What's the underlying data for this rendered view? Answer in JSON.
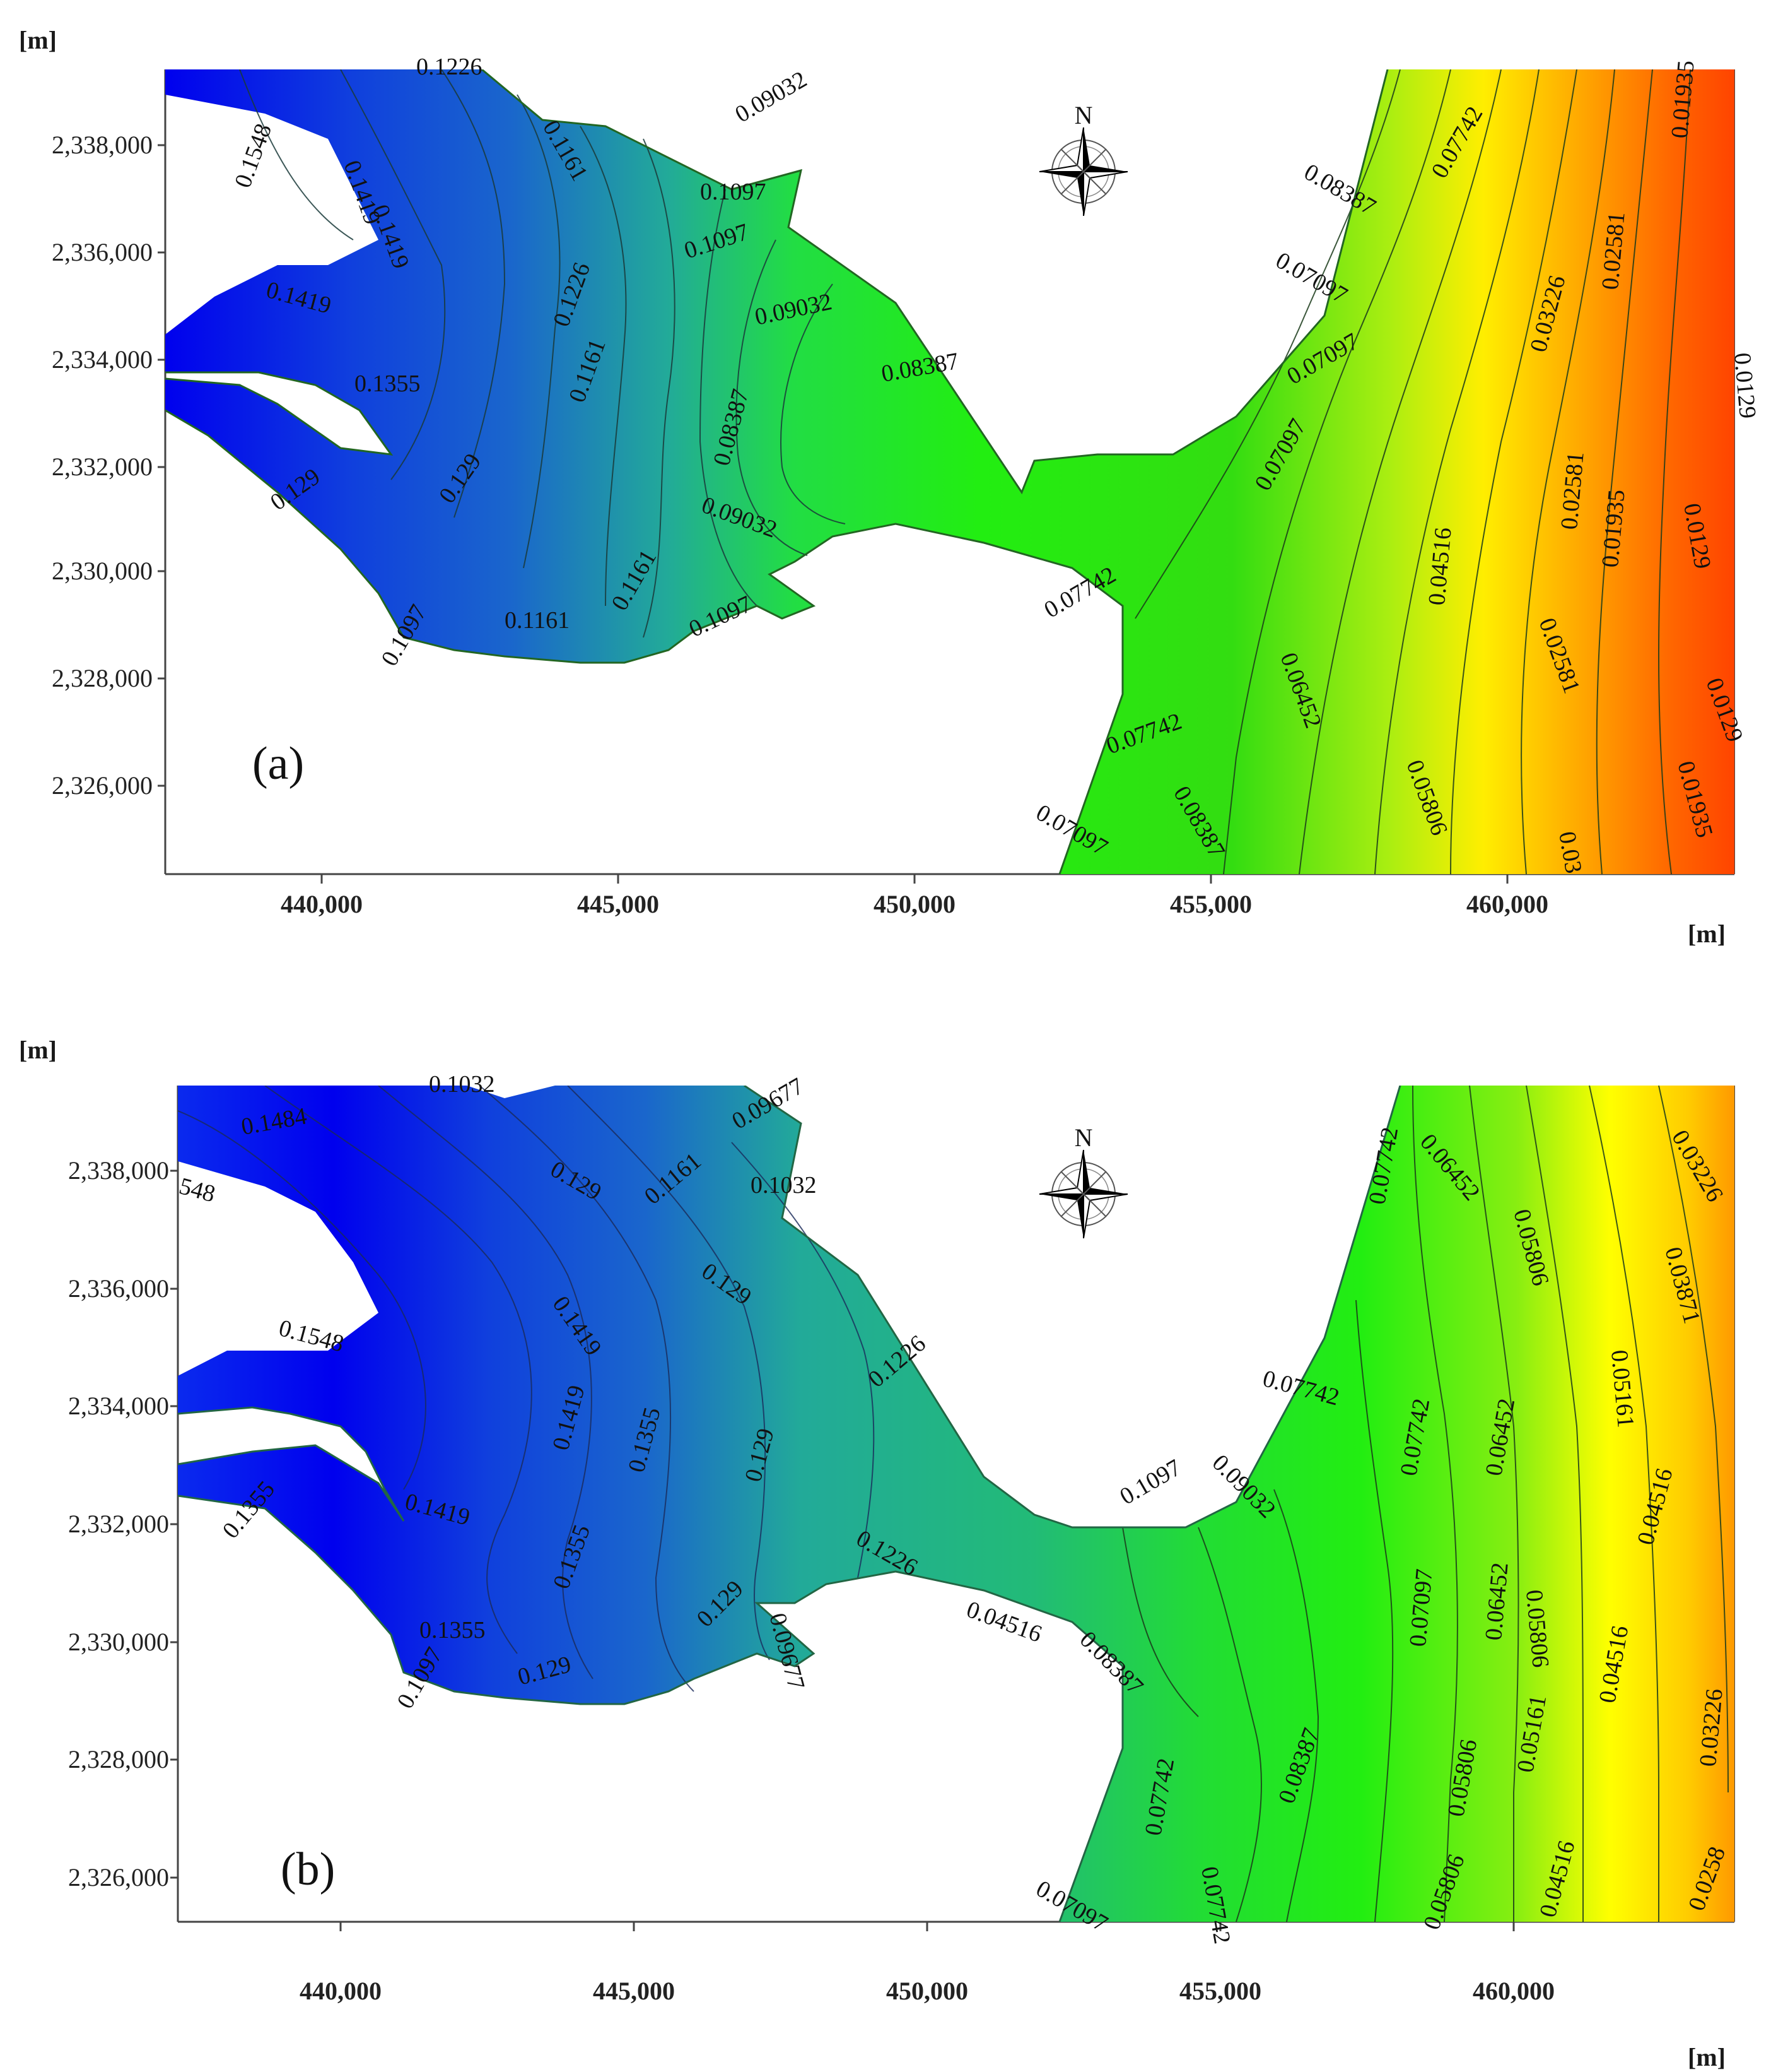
{
  "figure": {
    "panels": [
      {
        "id": "a",
        "label": "(a)",
        "y_unit": "[m]",
        "x_unit": "[m]",
        "y_ticks": [
          "2,326,000",
          "2,328,000",
          "2,330,000",
          "2,332,000",
          "2,334,000",
          "2,336,000",
          "2,338,000"
        ],
        "x_ticks": [
          "440,000",
          "445,000",
          "450,000",
          "455,000",
          "460,000"
        ],
        "contour_labels": [
          "0.1226",
          "0.1548",
          "0.1419",
          "0.1419",
          "0.1419",
          "0.1161",
          "0.09032",
          "0.1097",
          "0.1097",
          "0.1226",
          "0.1161",
          "0.1355",
          "0.09032",
          "0.08387",
          "0.08387",
          "0.129",
          "0.129",
          "0.09032",
          "0.1161",
          "0.1161",
          "0.1097",
          "0.1097",
          "0.07742",
          "0.08387",
          "0.07097",
          "0.07742",
          "0.07097",
          "0.07097",
          "0.06452",
          "0.04516",
          "0.02581",
          "0.01935",
          "0.0129",
          "0.0129",
          "0.03226",
          "0.02581",
          "0.01935",
          "0.0129",
          "0.07742",
          "0.07097",
          "0.08387",
          "0.05806",
          "0.02581",
          "0.01935",
          "0.03"
        ]
      },
      {
        "id": "b",
        "label": "(b)",
        "y_unit": "[m]",
        "x_unit": "[m]",
        "y_ticks": [
          "2,326,000",
          "2,328,000",
          "2,330,000",
          "2,332,000",
          "2,334,000",
          "2,336,000",
          "2,338,000"
        ],
        "x_ticks": [
          "440,000",
          "445,000",
          "450,000",
          "455,000",
          "460,000"
        ],
        "contour_labels": [
          "0.1032",
          "0.1484",
          "548",
          "0.09677",
          "0.129",
          "0.1161",
          "0.1032",
          "0.129",
          "0.1419",
          "0.1548",
          "0.1419",
          "0.1355",
          "0.129",
          "0.1226",
          "0.1355",
          "0.1419",
          "0.1355",
          "0.1226",
          "0.129",
          "0.1355",
          "0.129",
          "0.1097",
          "0.09677",
          "0.04516",
          "0.08387",
          "0.1097",
          "0.09032",
          "0.07742",
          "0.07742",
          "0.07742",
          "0.06452",
          "0.05806",
          "0.06452",
          "0.05161",
          "0.04516",
          "0.03871",
          "0.03226",
          "0.07097",
          "0.06452",
          "0.05806",
          "0.04516",
          "0.03226",
          "0.08387",
          "0.05806",
          "0.05161",
          "0.05806",
          "0.04516",
          "0.0258",
          "0.07097",
          "0.07742",
          "0.07742"
        ]
      }
    ],
    "north_arrow_label": "N",
    "colors": {
      "highest_values": "#0000ee",
      "high_values": "#1a66cc",
      "mid_values": "#22aa99",
      "low_mid_values": "#22ee11",
      "low_values": "#ffff00",
      "lowest_values": "#ff4400"
    }
  }
}
